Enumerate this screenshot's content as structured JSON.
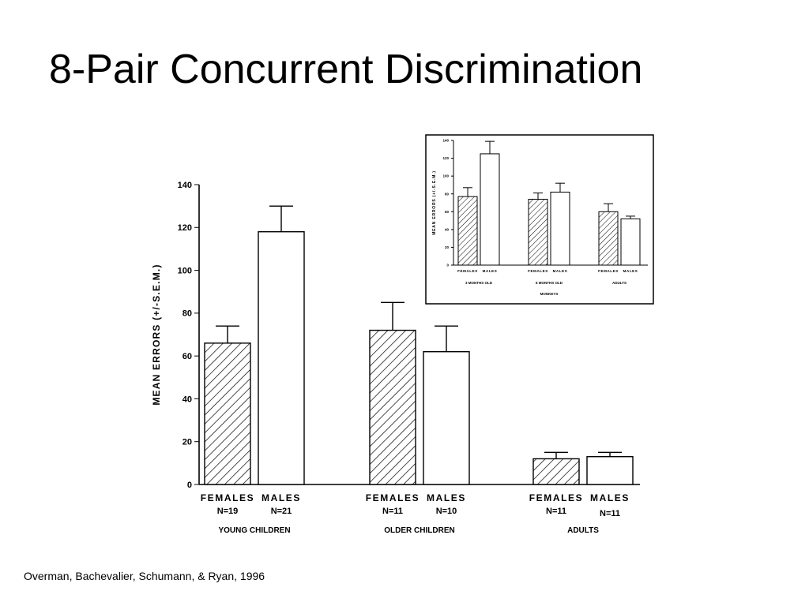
{
  "slide": {
    "title": "8-Pair Concurrent Discrimination",
    "citation": "Overman, Bachevalier, Schumann, & Ryan, 1996"
  },
  "colors": {
    "bar_outline": "#000000",
    "male_fill": "#ffffff",
    "hatch": "#000000"
  },
  "chart_data": [
    {
      "type": "bar",
      "ylabel": "MEAN  ERRORS  (+/-S.E.M.)",
      "ylim": [
        0,
        140
      ],
      "yticks": [
        0,
        20,
        40,
        60,
        80,
        100,
        120,
        140
      ],
      "groups": [
        {
          "label": "YOUNG CHILDREN",
          "bars": [
            {
              "sex": "FEMALES",
              "n": "N=19",
              "value": 66,
              "sem": 8,
              "pattern": "hatched"
            },
            {
              "sex": "MALES",
              "n": "N=21",
              "value": 118,
              "sem": 12,
              "pattern": "open"
            }
          ]
        },
        {
          "label": "OLDER CHILDREN",
          "bars": [
            {
              "sex": "FEMALES",
              "n": "N=11",
              "value": 72,
              "sem": 13,
              "pattern": "hatched"
            },
            {
              "sex": "MALES",
              "n": "N=10",
              "value": 62,
              "sem": 12,
              "pattern": "open"
            }
          ]
        },
        {
          "label": "ADULTS",
          "bars": [
            {
              "sex": "FEMALES",
              "n": "N=11",
              "value": 12,
              "sem": 3,
              "pattern": "hatched"
            },
            {
              "sex": "MALES",
              "n": "N=11",
              "value": 13,
              "sem": 2,
              "pattern": "open"
            }
          ]
        }
      ]
    },
    {
      "type": "bar",
      "ylabel": "MEAN  ERRORS  (+/-S.E.M.)",
      "ylim": [
        0,
        140
      ],
      "yticks": [
        0,
        20,
        40,
        60,
        80,
        100,
        120,
        140
      ],
      "xlabel": "MONKEYS",
      "groups": [
        {
          "label": "3 MONTHS OLD",
          "bars": [
            {
              "sex": "FEMALES",
              "value": 77,
              "sem": 10,
              "pattern": "hatched"
            },
            {
              "sex": "MALES",
              "value": 125,
              "sem": 14,
              "pattern": "open"
            }
          ]
        },
        {
          "label": "6 MONTHS OLD",
          "bars": [
            {
              "sex": "FEMALES",
              "value": 74,
              "sem": 7,
              "pattern": "hatched"
            },
            {
              "sex": "MALES",
              "value": 82,
              "sem": 10,
              "pattern": "open"
            }
          ]
        },
        {
          "label": "ADULTS",
          "bars": [
            {
              "sex": "FEMALES",
              "value": 60,
              "sem": 9,
              "pattern": "hatched"
            },
            {
              "sex": "MALES",
              "value": 52,
              "sem": 3,
              "pattern": "open"
            }
          ]
        }
      ]
    }
  ]
}
